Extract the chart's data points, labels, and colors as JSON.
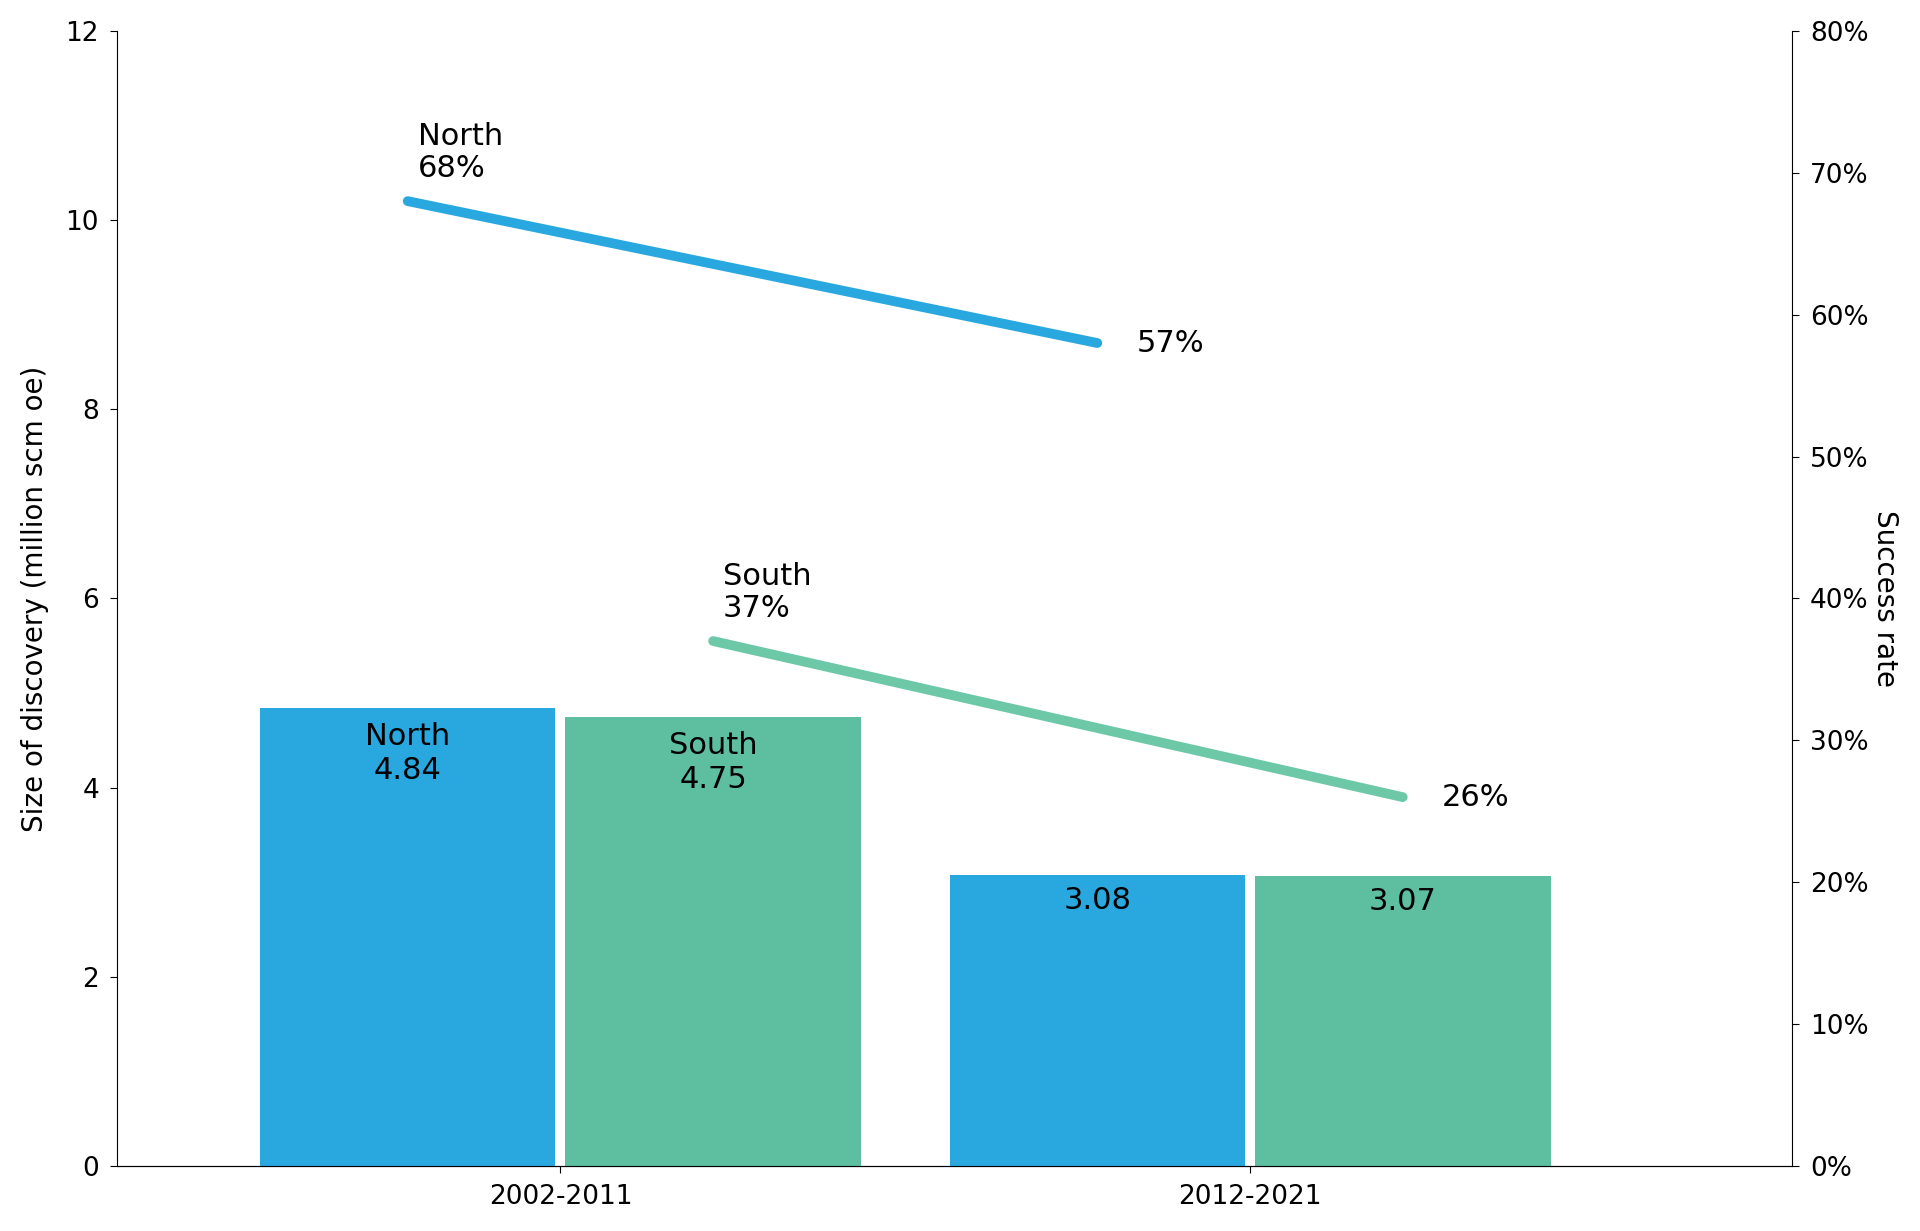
{
  "periods": [
    "2002-2011",
    "2012-2021"
  ],
  "north_bar": [
    4.84,
    3.08
  ],
  "south_bar": [
    4.75,
    3.07
  ],
  "north_rate": [
    0.68,
    0.58
  ],
  "south_rate": [
    0.37,
    0.26
  ],
  "north_bar_color": "#29A8E0",
  "south_bar_color": "#5DBEA0",
  "north_line_color": "#29A8E0",
  "south_line_color": "#6DC8A8",
  "bar_width": 0.3,
  "bar_gap": 0.01,
  "group_positions": [
    0.3,
    1.0
  ],
  "xlim": [
    -0.15,
    1.55
  ],
  "ylim_left": [
    0,
    12
  ],
  "ylim_right": [
    0,
    0.8
  ],
  "ylabel_left": "Size of discovery (million scm oe)",
  "ylabel_right": "Success rate",
  "xticks_pos": [
    0.3,
    1.0
  ],
  "xtick_labels": [
    "2002-2011",
    "2012-2021"
  ],
  "yticks_left": [
    0,
    2,
    4,
    6,
    8,
    10,
    12
  ],
  "yticks_right": [
    0.0,
    0.1,
    0.2,
    0.3,
    0.4,
    0.5,
    0.6,
    0.7,
    0.8
  ],
  "label_fontsize": 20,
  "tick_fontsize": 19,
  "annotation_fontsize": 22,
  "bar_label_fontsize": 22,
  "line_width": 7,
  "north_ann_label": "North",
  "south_ann_label": "South"
}
